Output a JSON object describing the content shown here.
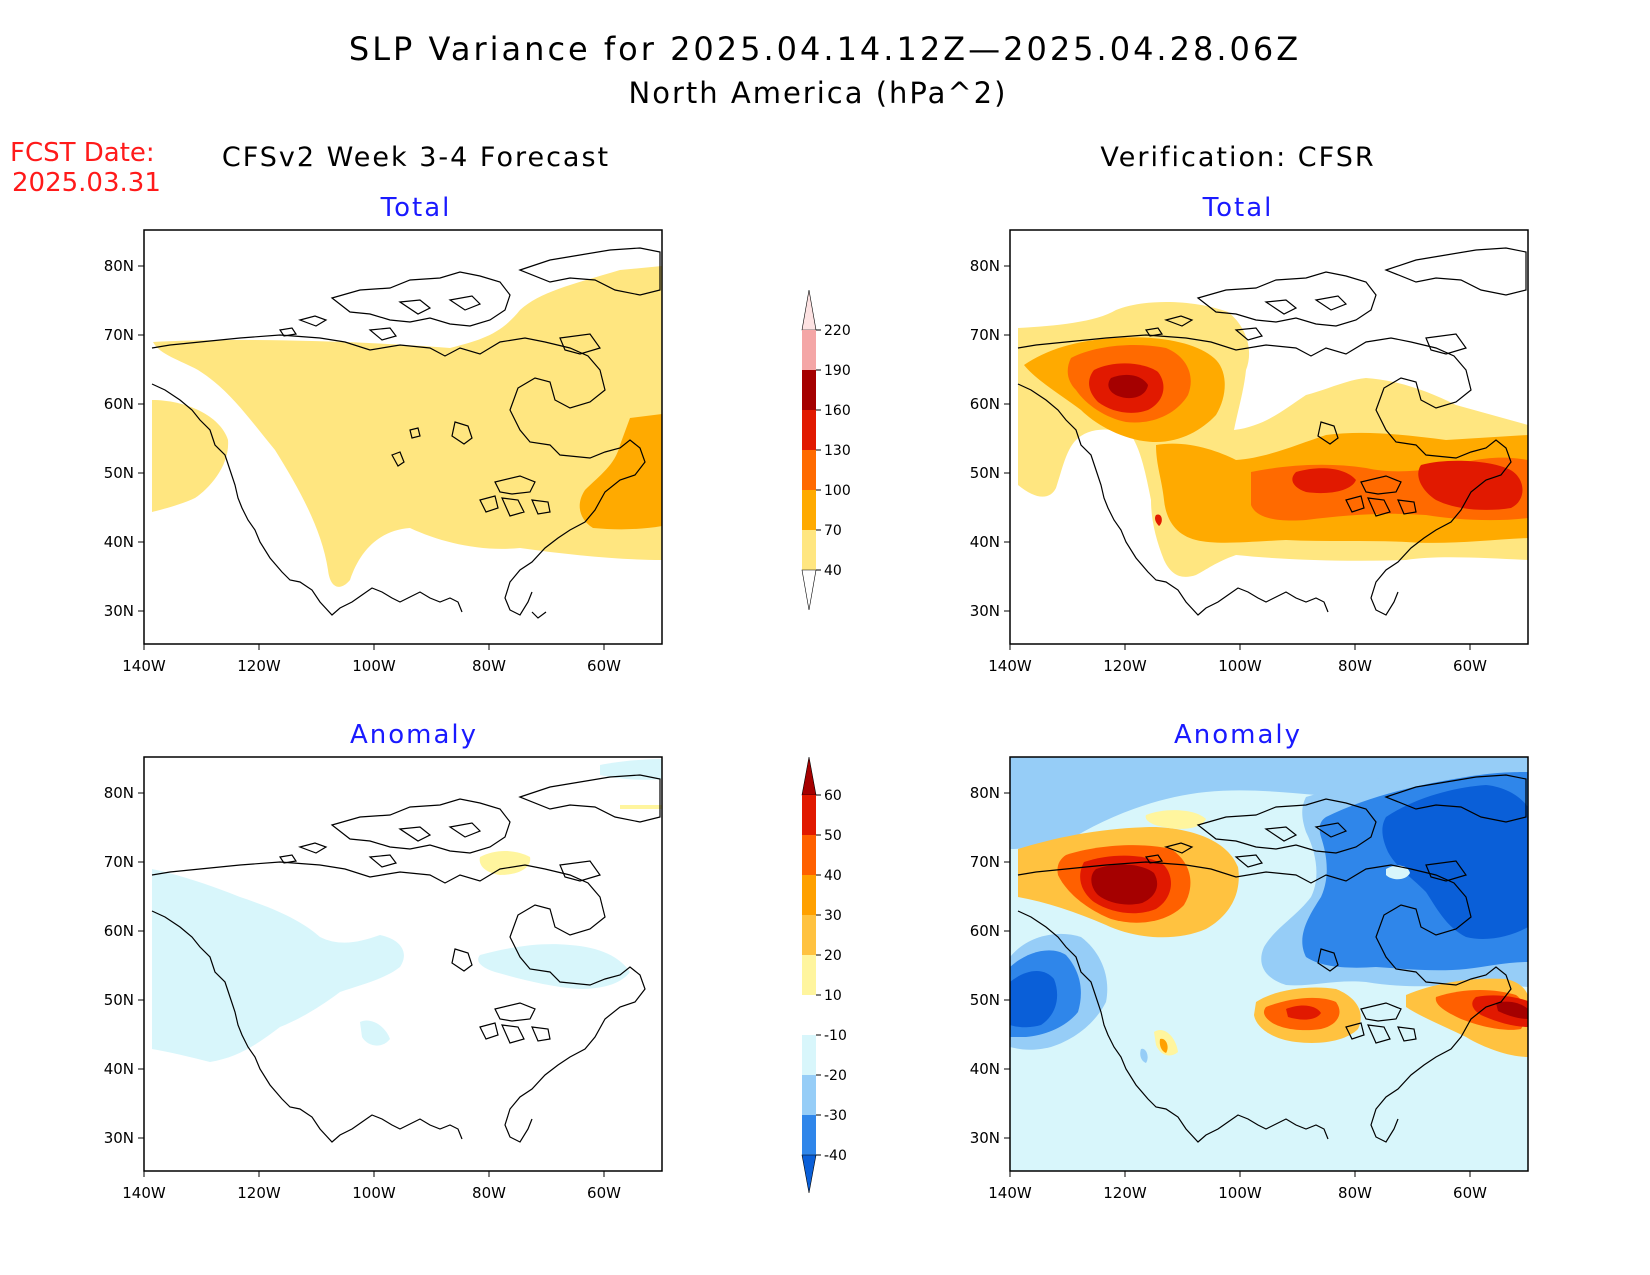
{
  "header": {
    "title": "SLP Variance for 2025.04.14.12Z—2025.04.28.06Z",
    "subtitle": "North America (hPa^2)",
    "fcst_label": "FCST Date:",
    "fcst_date": "2025.03.31"
  },
  "columns": {
    "left": "CFSv2 Week 3-4 Forecast",
    "right": "Verification: CFSR"
  },
  "panels": [
    {
      "id": "fcst-total",
      "title": "Total"
    },
    {
      "id": "verif-total",
      "title": "Total"
    },
    {
      "id": "fcst-anomaly",
      "title": "Anomaly"
    },
    {
      "id": "verif-anomaly",
      "title": "Anomaly"
    }
  ],
  "axes": {
    "lat_labels": [
      "80N",
      "70N",
      "60N",
      "50N",
      "40N",
      "30N"
    ],
    "lon_labels": [
      "140W",
      "120W",
      "100W",
      "80W",
      "60W"
    ]
  },
  "colorbars": {
    "total": {
      "levels": [
        "40",
        "70",
        "100",
        "130",
        "160",
        "190",
        "220"
      ],
      "colors": [
        "#ffe680",
        "#ffaa00",
        "#ff6a00",
        "#e11900",
        "#a50000",
        "#f4a6a6",
        "#fde2e2"
      ]
    },
    "anomaly": {
      "levels": [
        "-40",
        "-30",
        "-20",
        "-10",
        "10",
        "20",
        "30",
        "40",
        "50",
        "60"
      ],
      "colors": [
        "#0a5fd8",
        "#2f86ea",
        "#96cdf7",
        "#d8f6fb",
        "#ffffff",
        "#fff59e",
        "#ffc240",
        "#ffa000",
        "#ff6000",
        "#e11900",
        "#a50000"
      ]
    }
  }
}
